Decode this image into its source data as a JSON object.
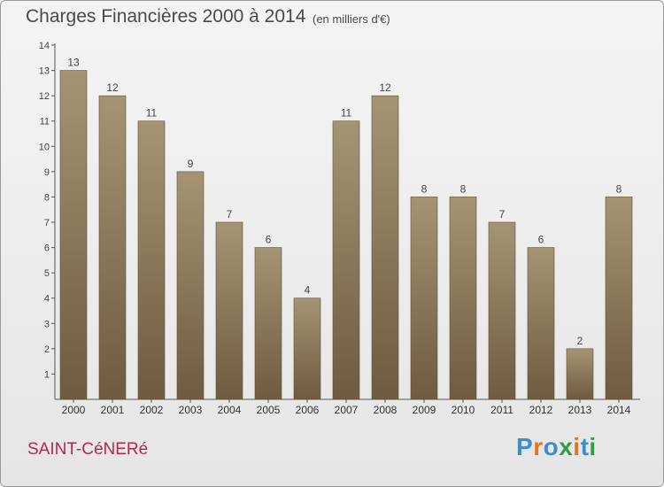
{
  "header": {
    "title": "Charges Financières 2000 à 2014",
    "subtitle": "(en milliers d'€)"
  },
  "footer": {
    "city": "SAINT-CéNERé",
    "brand": "Proxiti"
  },
  "colors": {
    "bar_top": "#a59474",
    "bar_bottom": "#6f5b3f",
    "city": "#b5284a"
  },
  "chart_data": {
    "type": "bar",
    "title": "Charges Financières 2000 à 2014",
    "subtitle": "(en milliers d'€)",
    "categories": [
      "2000",
      "2001",
      "2002",
      "2003",
      "2004",
      "2005",
      "2006",
      "2007",
      "2008",
      "2009",
      "2010",
      "2011",
      "2012",
      "2013",
      "2014"
    ],
    "values": [
      13,
      12,
      11,
      9,
      7,
      6,
      4,
      11,
      12,
      8,
      8,
      7,
      6,
      2,
      8
    ],
    "ylim": [
      0,
      14
    ],
    "yticks": [
      1,
      2,
      3,
      4,
      5,
      6,
      7,
      8,
      9,
      10,
      11,
      12,
      13,
      14
    ],
    "grid": false,
    "data_labels": true
  }
}
